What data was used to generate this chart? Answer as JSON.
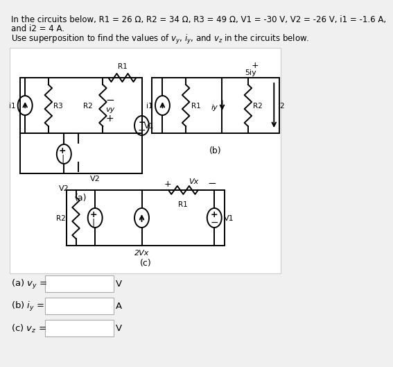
{
  "title_line1": "In the circuits below, R1 = 26 Ω, R2 = 34 Ω, R3 = 49 Ω, V1 = -30 V, V2 = -26 V, i1 = -1.6 A,",
  "title_line2": "and i2 = 4 A.",
  "title_line3": "Use superposition to find the values of vₙ, iₙ, and v₂ in the circuits below.",
  "bg_color": "#f0f0f0",
  "circuit_bg": "#ffffff",
  "text_color": "#000000",
  "box_color": "#d0d0d0"
}
